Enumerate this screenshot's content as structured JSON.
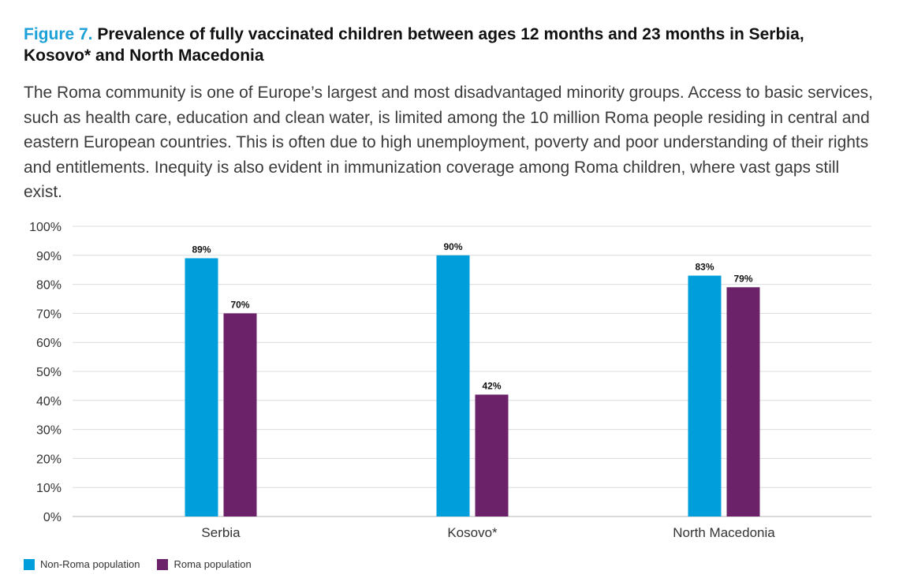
{
  "header": {
    "figure_label": "Figure 7.",
    "title": "Prevalence of fully vaccinated children between ages 12 months and 23 months in Serbia, Kosovo* and North Macedonia"
  },
  "intro_text": "The Roma community is one of Europe’s largest and most disadvantaged minority groups. Access to basic services, such as health care, education and clean water, is limited among the 10 million Roma people residing in central and eastern European countries. This is often due to high unemployment, poverty and poor understanding of their rights and entitlements. Inequity is also evident in immunization coverage among Roma children, where vast gaps still exist.",
  "chart_data": {
    "type": "bar",
    "categories": [
      "Serbia",
      "Kosovo*",
      "North Macedonia"
    ],
    "series": [
      {
        "name": "Non-Roma population",
        "values": [
          89,
          90,
          83
        ],
        "color": "#009fdb"
      },
      {
        "name": "Roma population",
        "values": [
          70,
          42,
          79
        ],
        "color": "#6b2269"
      }
    ],
    "ylim": [
      0,
      100
    ],
    "yticks": [
      0,
      10,
      20,
      30,
      40,
      50,
      60,
      70,
      80,
      90,
      100
    ],
    "tick_suffix": "%",
    "data_label_suffix": "%",
    "grid": true,
    "legend_position": "bottom-left"
  }
}
